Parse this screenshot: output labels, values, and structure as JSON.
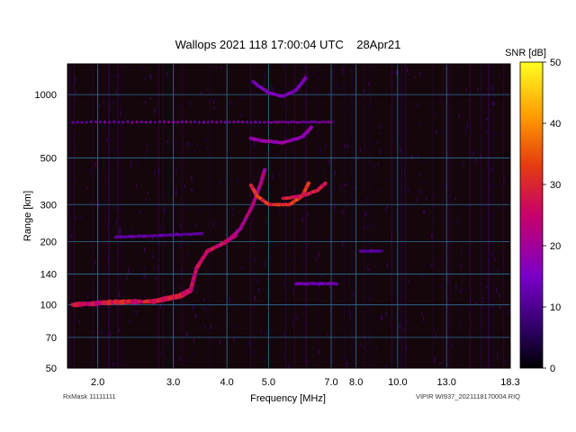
{
  "chart_data": {
    "type": "heatmap",
    "title": "Wallops 2021 118 17:00:04 UTC    28Apr21",
    "xlabel": "Frequency [MHz]",
    "ylabel": "Range [km]",
    "colorbar_label": "SNR [dB]",
    "x_scale": "log",
    "y_scale": "log",
    "xlim": [
      1.7,
      18.3
    ],
    "ylim": [
      50,
      1400
    ],
    "x_ticks": [
      {
        "value": 2.0,
        "label": "2.0"
      },
      {
        "value": 3.0,
        "label": "3.0"
      },
      {
        "value": 4.0,
        "label": "4.0"
      },
      {
        "value": 5.0,
        "label": "5.0"
      },
      {
        "value": 7.0,
        "label": "7.0"
      },
      {
        "value": 8.0,
        "label": "8.0"
      },
      {
        "value": 10.0,
        "label": "10.0"
      },
      {
        "value": 13.0,
        "label": "13.0"
      },
      {
        "value": 18.3,
        "label": "18.3"
      }
    ],
    "y_ticks": [
      {
        "value": 1000,
        "label": "1000"
      },
      {
        "value": 500,
        "label": "500"
      },
      {
        "value": 300,
        "label": "300"
      },
      {
        "value": 200,
        "label": "200"
      },
      {
        "value": 140,
        "label": "140"
      },
      {
        "value": 100,
        "label": "100"
      },
      {
        "value": 70,
        "label": "70"
      },
      {
        "value": 50,
        "label": "50"
      }
    ],
    "colorbar": {
      "min": 0,
      "max": 50,
      "ticks": [
        0,
        10,
        20,
        30,
        40,
        50
      ]
    },
    "grid": true,
    "grid_color": "#2f6f9a",
    "background_color": "#14060a",
    "traces": [
      {
        "points": [
          [
            1.75,
            100
          ],
          [
            2.2,
            103
          ],
          [
            2.7,
            104
          ],
          [
            3.1,
            110
          ],
          [
            3.3,
            118
          ]
        ],
        "snr": 30,
        "spread": 0.028
      },
      {
        "points": [
          [
            3.3,
            120
          ],
          [
            3.4,
            150
          ],
          [
            3.6,
            180
          ],
          [
            3.9,
            195
          ],
          [
            4.2,
            215
          ]
        ],
        "snr": 28,
        "spread": 0.015
      },
      {
        "points": [
          [
            4.0,
            200
          ],
          [
            4.3,
            230
          ],
          [
            4.6,
            300
          ],
          [
            4.8,
            380
          ],
          [
            4.9,
            440
          ]
        ],
        "snr": 24,
        "spread": 0.012
      },
      {
        "points": [
          [
            4.55,
            370
          ],
          [
            4.7,
            330
          ],
          [
            5.0,
            300
          ],
          [
            5.6,
            300
          ],
          [
            6.0,
            330
          ],
          [
            6.2,
            380
          ]
        ],
        "snr": 33,
        "spread": 0.012
      },
      {
        "points": [
          [
            5.4,
            320
          ],
          [
            6.0,
            330
          ],
          [
            6.5,
            350
          ],
          [
            6.8,
            380
          ]
        ],
        "snr": 30,
        "spread": 0.012
      },
      {
        "points": [
          [
            4.55,
            620
          ],
          [
            4.9,
            600
          ],
          [
            5.4,
            590
          ],
          [
            6.0,
            630
          ],
          [
            6.3,
            700
          ]
        ],
        "snr": 20,
        "spread": 0.012
      },
      {
        "points": [
          [
            4.6,
            1150
          ],
          [
            5.0,
            1020
          ],
          [
            5.4,
            980
          ],
          [
            5.8,
            1050
          ],
          [
            6.1,
            1200
          ]
        ],
        "snr": 16,
        "spread": 0.01
      },
      {
        "points": [
          [
            2.2,
            210
          ],
          [
            2.8,
            214
          ],
          [
            3.5,
            218
          ]
        ],
        "snr": 14,
        "spread": 0.01
      },
      {
        "points": [
          [
            1.75,
            740
          ],
          [
            3.0,
            740
          ],
          [
            5.0,
            740
          ],
          [
            7.0,
            740
          ]
        ],
        "snr": 18,
        "spread": 0.006
      },
      {
        "points": [
          [
            5.8,
            126
          ],
          [
            7.2,
            126
          ]
        ],
        "snr": 15,
        "spread": 0.012
      },
      {
        "points": [
          [
            8.2,
            180
          ],
          [
            9.2,
            180
          ]
        ],
        "snr": 12,
        "spread": 0.008
      }
    ]
  },
  "footer": {
    "left": "RxMask 11111111",
    "right": "VIPIR  WI937_2021118170004.RIQ"
  }
}
